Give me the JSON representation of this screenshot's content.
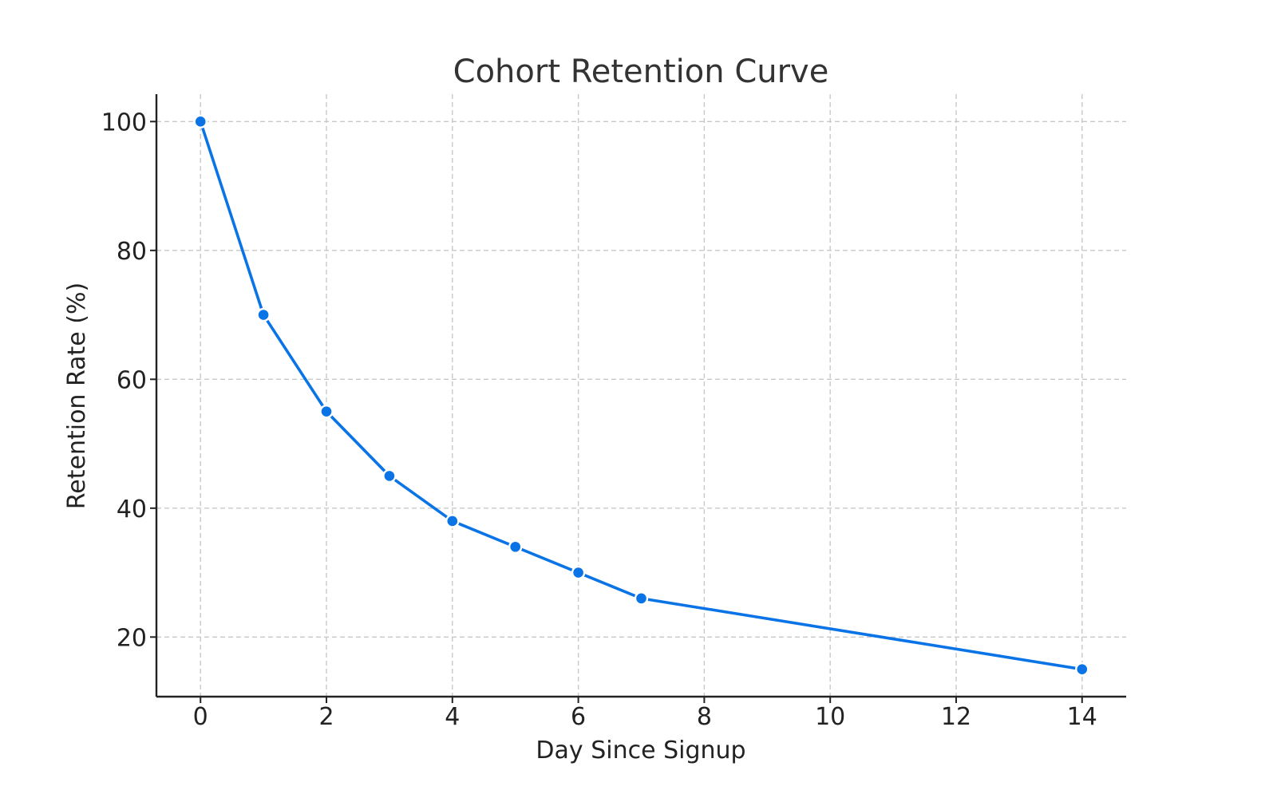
{
  "chart_data": {
    "type": "line",
    "title": "Cohort Retention Curve",
    "xlabel": "Day Since Signup",
    "ylabel": "Retention Rate (%)",
    "x": [
      0,
      1,
      2,
      3,
      4,
      5,
      6,
      7,
      14
    ],
    "series": [
      {
        "values": [
          100,
          70,
          55,
          45,
          38,
          34,
          30,
          26,
          15
        ]
      }
    ],
    "xlim": [
      -0.7,
      14.7
    ],
    "ylim": [
      10.75,
      104.25
    ],
    "xticks": [
      0,
      2,
      4,
      6,
      8,
      10,
      12,
      14
    ],
    "yticks": [
      20,
      40,
      60,
      80,
      100
    ],
    "grid": true,
    "color": "#0a74e6"
  }
}
